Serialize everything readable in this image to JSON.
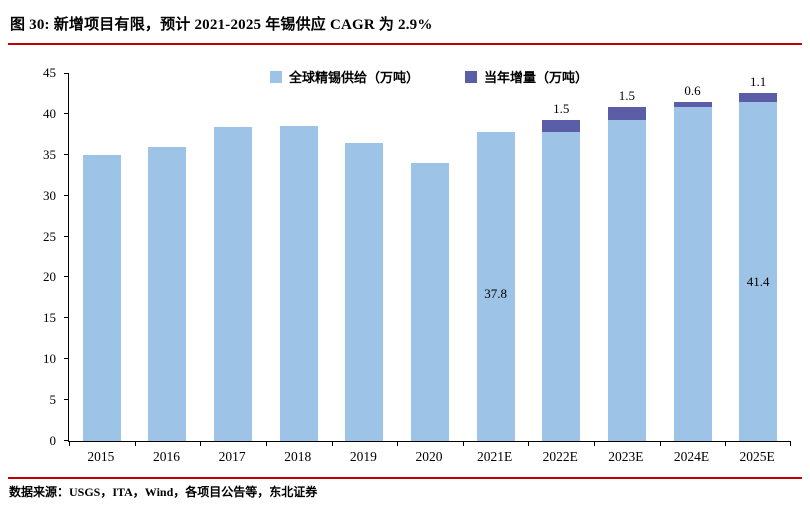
{
  "header": {
    "title": "图 30:  新增项目有限，预计 2021-2025 年锡供应 CAGR 为 2.9%"
  },
  "footer": {
    "source": "数据来源：USGS，ITA，Wind，各项目公告等，东北证券"
  },
  "colors": {
    "rule_red": "#c00000",
    "supply_blue": "#9dc3e6",
    "increment_purple": "#5b5ea7",
    "axis_black": "#000000"
  },
  "chart_data": {
    "type": "bar",
    "stacked": true,
    "title": "图 30: 新增项目有限，预计 2021-2025 年锡供应 CAGR 为 2.9%",
    "categories": [
      "2015",
      "2016",
      "2017",
      "2018",
      "2019",
      "2020",
      "2021E",
      "2022E",
      "2023E",
      "2024E",
      "2025E"
    ],
    "series": [
      {
        "name": "全球精锡供给（万吨）",
        "color": "#9dc3e6",
        "values": [
          35.0,
          36.0,
          38.4,
          38.5,
          36.4,
          34.0,
          37.8,
          37.8,
          39.3,
          40.8,
          41.4
        ]
      },
      {
        "name": "当年增量（万吨）",
        "color": "#5b5ea7",
        "values": [
          0,
          0,
          0,
          0,
          0,
          0,
          0,
          1.5,
          1.5,
          0.6,
          1.1
        ]
      }
    ],
    "value_labels": [
      {
        "category": "2021E",
        "text": "37.8",
        "placement": "inside",
        "y": 18
      },
      {
        "category": "2025E",
        "text": "41.4",
        "placement": "inside",
        "y": 19.5
      },
      {
        "category": "2022E",
        "text": "1.5",
        "placement": "above"
      },
      {
        "category": "2023E",
        "text": "1.5",
        "placement": "above"
      },
      {
        "category": "2024E",
        "text": "0.6",
        "placement": "above"
      },
      {
        "category": "2025E",
        "text": "1.1",
        "placement": "above"
      }
    ],
    "xlabel": "",
    "ylabel": "",
    "ylim": [
      0,
      45
    ],
    "ytick_step": 5,
    "grid": false,
    "legend_position": "top-center"
  }
}
